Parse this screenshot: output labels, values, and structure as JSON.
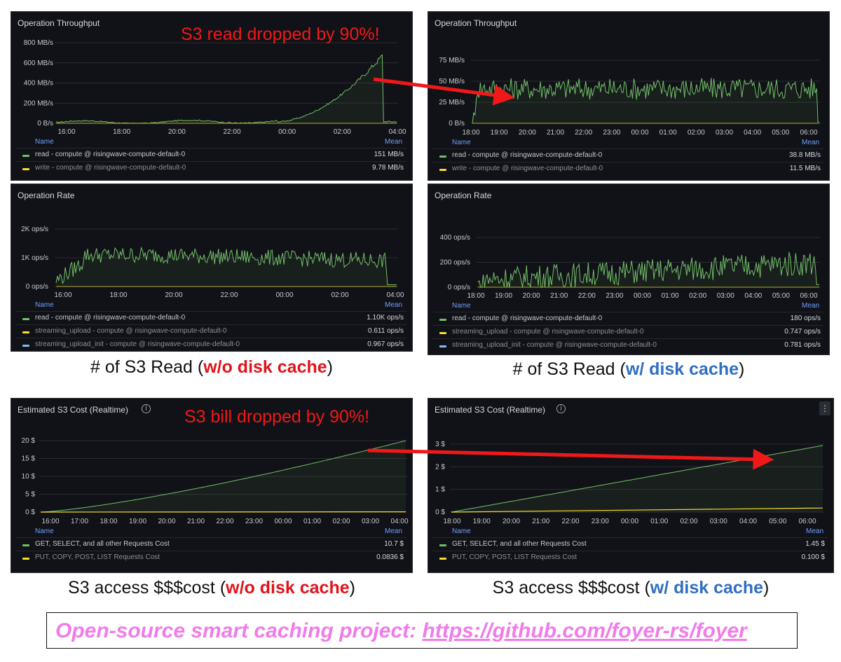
{
  "panels": [
    {
      "title": "Operation Throughput",
      "y_ticks": [
        "800 MB/s",
        "600 MB/s",
        "400 MB/s",
        "200 MB/s",
        "0 B/s"
      ],
      "x_ticks": [
        "16:00",
        "18:00",
        "20:00",
        "22:00",
        "00:00",
        "02:00",
        "04:00"
      ],
      "legend_header": {
        "name": "Name",
        "mean": "Mean"
      },
      "legend": [
        {
          "color": "#73bf69",
          "name": "read - compute @ risingwave-compute-default-0",
          "mean": "151 MB/s"
        },
        {
          "color": "#fade2a",
          "name": "write - compute @ risingwave-compute-default-0",
          "mean": "9.78 MB/s"
        }
      ]
    },
    {
      "title": "Operation Throughput",
      "y_ticks": [
        "75 MB/s",
        "50 MB/s",
        "25 MB/s",
        "0 B/s"
      ],
      "x_ticks": [
        "18:00",
        "19:00",
        "20:00",
        "21:00",
        "22:00",
        "23:00",
        "00:00",
        "01:00",
        "02:00",
        "03:00",
        "04:00",
        "05:00",
        "06:00"
      ],
      "legend_header": {
        "name": "Name",
        "mean": "Mean"
      },
      "legend": [
        {
          "color": "#73bf69",
          "name": "read - compute @ risingwave-compute-default-0",
          "mean": "38.8 MB/s"
        },
        {
          "color": "#fade2a",
          "name": "write - compute @ risingwave-compute-default-0",
          "mean": "11.5 MB/s"
        }
      ]
    },
    {
      "title": "Operation Rate",
      "y_ticks": [
        "2K ops/s",
        "1K ops/s",
        "0 ops/s"
      ],
      "x_ticks": [
        "16:00",
        "18:00",
        "20:00",
        "22:00",
        "00:00",
        "02:00",
        "04:00"
      ],
      "legend_header": {
        "name": "Name",
        "mean": "Mean"
      },
      "legend": [
        {
          "color": "#73bf69",
          "name": "read - compute @ risingwave-compute-default-0",
          "mean": "1.10K ops/s"
        },
        {
          "color": "#fade2a",
          "name": "streaming_upload - compute @ risingwave-compute-default-0",
          "mean": "0.611 ops/s"
        },
        {
          "color": "#8ab8ff",
          "name": "streaming_upload_init - compute @ risingwave-compute-default-0",
          "mean": "0.967 ops/s"
        }
      ]
    },
    {
      "title": "Operation Rate",
      "y_ticks": [
        "400 ops/s",
        "200 ops/s",
        "0 ops/s"
      ],
      "x_ticks": [
        "18:00",
        "19:00",
        "20:00",
        "21:00",
        "22:00",
        "23:00",
        "00:00",
        "01:00",
        "02:00",
        "03:00",
        "04:00",
        "05:00",
        "06:00"
      ],
      "legend_header": {
        "name": "Name",
        "mean": "Mean"
      },
      "legend": [
        {
          "color": "#73bf69",
          "name": "read - compute @ risingwave-compute-default-0",
          "mean": "180 ops/s"
        },
        {
          "color": "#fade2a",
          "name": "streaming_upload - compute @ risingwave-compute-default-0",
          "mean": "0.747 ops/s"
        },
        {
          "color": "#8ab8ff",
          "name": "streaming_upload_init - compute @ risingwave-compute-default-0",
          "mean": "0.781 ops/s"
        }
      ]
    },
    {
      "title": "Estimated S3 Cost (Realtime)",
      "y_ticks": [
        "20 $",
        "15 $",
        "10 $",
        "5 $",
        "0 $"
      ],
      "x_ticks": [
        "16:00",
        "17:00",
        "18:00",
        "19:00",
        "20:00",
        "21:00",
        "22:00",
        "23:00",
        "00:00",
        "01:00",
        "02:00",
        "03:00",
        "04:00"
      ],
      "legend_header": {
        "name": "Name",
        "mean": "Mean"
      },
      "legend": [
        {
          "color": "#73bf69",
          "name": "GET, SELECT, and all other Requests Cost",
          "mean": "10.7 $"
        },
        {
          "color": "#fade2a",
          "name": "PUT, COPY, POST, LIST Requests Cost",
          "mean": "0.0836 $"
        }
      ]
    },
    {
      "title": "Estimated S3 Cost (Realtime)",
      "y_ticks": [
        "3 $",
        "2 $",
        "1 $",
        "0 $"
      ],
      "x_ticks": [
        "18:00",
        "19:00",
        "20:00",
        "21:00",
        "22:00",
        "23:00",
        "00:00",
        "01:00",
        "02:00",
        "03:00",
        "04:00",
        "05:00",
        "06:00"
      ],
      "legend_header": {
        "name": "Name",
        "mean": "Mean"
      },
      "legend": [
        {
          "color": "#73bf69",
          "name": "GET, SELECT, and all other Requests Cost",
          "mean": "1.45 $"
        },
        {
          "color": "#fade2a",
          "name": "PUT, COPY, POST, LIST Requests Cost",
          "mean": "0.100 $"
        }
      ]
    }
  ],
  "annotations": {
    "read_drop": "S3 read dropped by 90%!",
    "bill_drop": "S3 bill dropped by 90%!"
  },
  "captions": {
    "read_wo_prefix": "# of S3 Read (",
    "read_wo_em": "w/o disk cache",
    "read_w_prefix": "# of S3 Read (",
    "read_w_em": "w/ disk cache",
    "cost_wo_prefix": "S3 access $$$cost (",
    "cost_wo_em": "w/o disk cache",
    "cost_w_prefix": "S3 access $$$cost (",
    "cost_w_em": "w/ disk cache",
    "close": ")"
  },
  "footer": {
    "label": "Open-source smart caching project: ",
    "link": "https://github.com/foyer-rs/foyer"
  },
  "icons": {
    "info": "info-icon",
    "menu": "more-vertical-icon"
  },
  "colors": {
    "read": "#73bf69",
    "write": "#fade2a",
    "upload_init": "#8ab8ff",
    "annotation": "#f01818",
    "footer": "#f07ce8",
    "wo_emphasis": "#e0141c",
    "w_emphasis": "#2f6fc2"
  }
}
